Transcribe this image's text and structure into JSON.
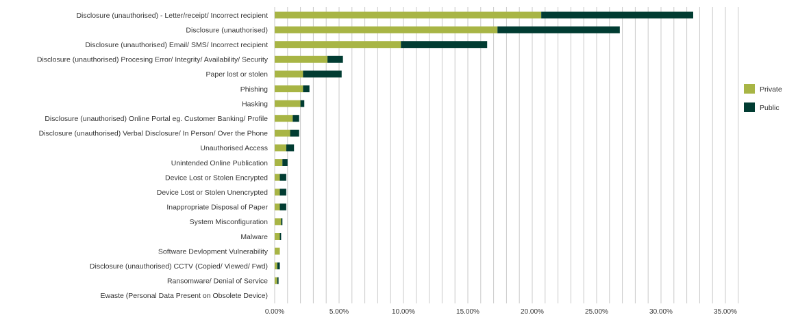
{
  "colors": {
    "private": "#a8b545",
    "public": "#013c32",
    "grid": "#c9c9c9"
  },
  "chart_data": {
    "type": "bar",
    "orientation": "horizontal",
    "stacked": true,
    "title": "",
    "xlabel": "",
    "ylabel": "",
    "xlim": [
      0,
      36
    ],
    "x_ticks": [
      "0.00%",
      "5.00%",
      "10.00%",
      "15.00%",
      "20.00%",
      "25.00%",
      "30.00%",
      "35.00%"
    ],
    "x_tick_values": [
      0,
      5,
      10,
      15,
      20,
      25,
      30,
      35
    ],
    "grid": true,
    "legend_position": "right",
    "categories": [
      "Disclosure (unauthorised) - Letter/receipt/ Incorrect recipient",
      "Disclosure (unauthorised)",
      "Disclosure (unauthorised) Email/ SMS/ Incorrect recipient",
      "Disclosure (unauthorised) Procesing Error/ Integrity/ Availability/ Security",
      "Paper lost or stolen",
      "Phishing",
      "Hasking",
      "Disclosure (unauthorised) Online Portal eg. Customer Banking/ Profile",
      "Disclosure (unauthorised) Verbal Disclosure/ In Person/ Over the Phone",
      "Unauthorised Access",
      "Unintended Online Publication",
      "Device Lost or Stolen Encrypted",
      "Device Lost or Stolen Unencrypted",
      "Inappropriate Disposal of Paper",
      "System Misconfiguration",
      "Malware",
      "Software Devlopment Vulnerability",
      "Disclosure (unauthorised) CCTV (Copied/ Viewed/ Fwd)",
      "Ransomware/ Denial of Service",
      "Ewaste (Personal Data Present on Obsolete Device)"
    ],
    "series": [
      {
        "name": "Private",
        "values": [
          20.7,
          17.3,
          9.8,
          4.1,
          2.2,
          2.2,
          2.0,
          1.4,
          1.2,
          0.9,
          0.6,
          0.4,
          0.4,
          0.4,
          0.5,
          0.4,
          0.4,
          0.2,
          0.2,
          0.0
        ]
      },
      {
        "name": "Public",
        "values": [
          11.8,
          9.5,
          6.7,
          1.2,
          3.0,
          0.5,
          0.3,
          0.5,
          0.7,
          0.6,
          0.4,
          0.5,
          0.5,
          0.5,
          0.1,
          0.1,
          0.0,
          0.2,
          0.1,
          0.0
        ]
      }
    ]
  }
}
